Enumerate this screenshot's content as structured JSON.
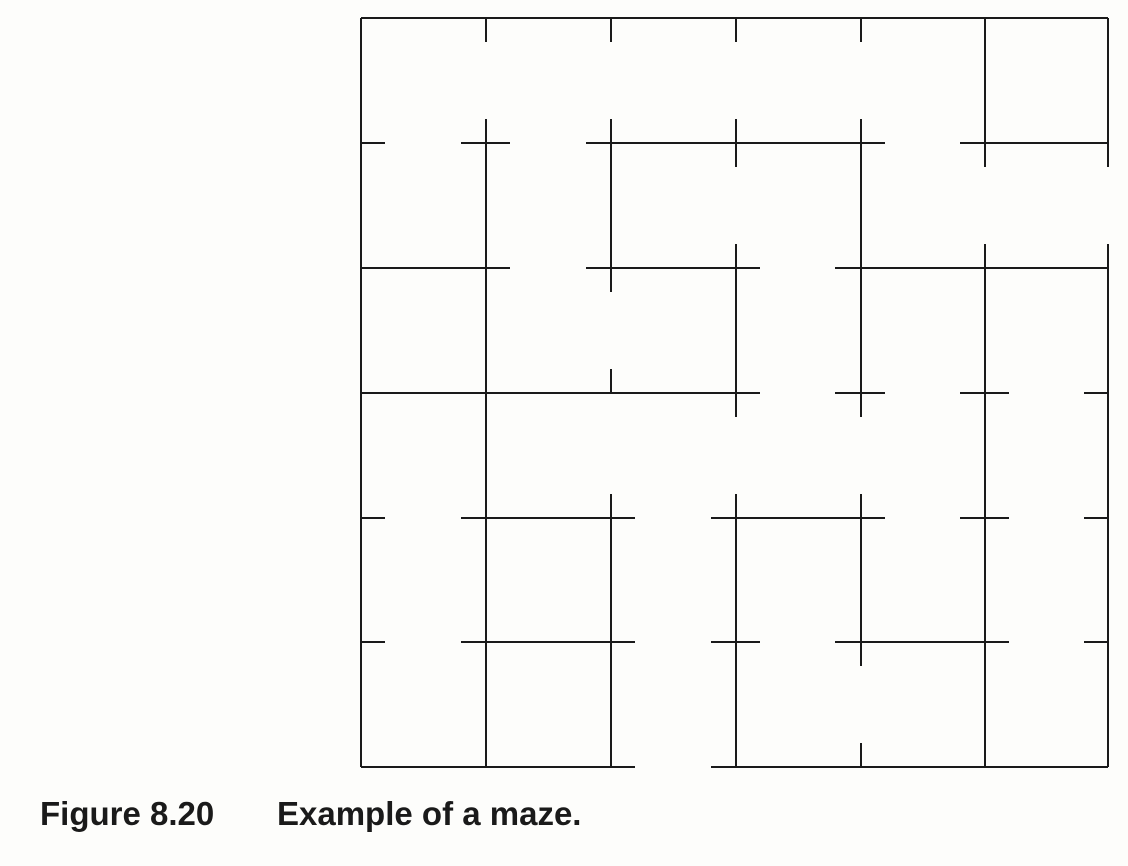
{
  "caption": {
    "figure_label": "Figure 8.20",
    "text": "Example of a maze."
  },
  "maze": {
    "rows": 6,
    "cols": 6,
    "wall_color": "#1a1a1a"
  }
}
